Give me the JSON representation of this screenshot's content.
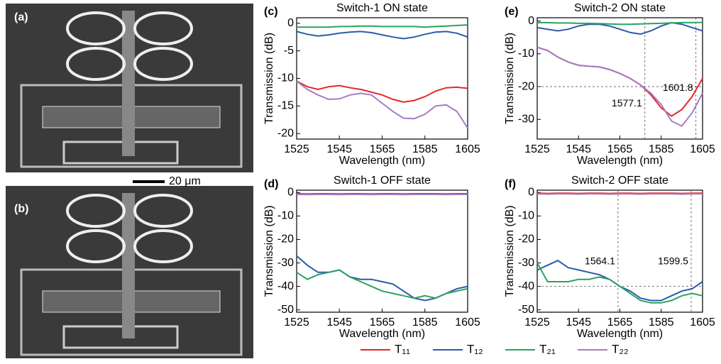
{
  "figure": {
    "panel_labels": [
      "(a)",
      "(b)"
    ],
    "scale_bar": "20 μm"
  },
  "chart_data": [
    {
      "type": "line",
      "panel_label": "(c)",
      "title": "Switch-1 ON state",
      "x_label": "Wavelength (nm)",
      "y_label": "Transmission (dB)",
      "x": [
        1525,
        1530,
        1535,
        1540,
        1545,
        1550,
        1555,
        1560,
        1565,
        1570,
        1575,
        1580,
        1585,
        1590,
        1595,
        1600,
        1605
      ],
      "xlim": [
        1525,
        1605
      ],
      "xticks": [
        1525,
        1545,
        1565,
        1585,
        1605
      ],
      "ylim": [
        -21,
        1
      ],
      "yticks": [
        0,
        -5,
        -10,
        -15,
        -20
      ],
      "series": [
        {
          "name": "T₁₁",
          "color": "#e8262a",
          "values": [
            -10.5,
            -11.5,
            -12,
            -11.5,
            -11.3,
            -11.7,
            -12,
            -12.5,
            -13,
            -13.8,
            -14.3,
            -14,
            -13.3,
            -12.3,
            -11.7,
            -11.6,
            -11.8
          ]
        },
        {
          "name": "T₁₂",
          "color": "#2a5caa",
          "values": [
            -1.5,
            -2,
            -2.3,
            -2.1,
            -1.8,
            -1.6,
            -1.5,
            -1.7,
            -2.1,
            -2.5,
            -2.8,
            -2.5,
            -2,
            -1.6,
            -1.5,
            -1.8,
            -2.5
          ]
        },
        {
          "name": "T₂₁",
          "color": "#2ca25f",
          "values": [
            -0.7,
            -0.7,
            -0.7,
            -0.7,
            -0.6,
            -0.6,
            -0.5,
            -0.5,
            -0.6,
            -0.6,
            -0.6,
            -0.6,
            -0.7,
            -0.6,
            -0.5,
            -0.4,
            -0.3
          ]
        },
        {
          "name": "T₂₂",
          "color": "#a57dc3",
          "values": [
            -10.5,
            -12,
            -13,
            -13.8,
            -13.7,
            -13,
            -12.7,
            -13,
            -14.5,
            -16,
            -17.2,
            -17.3,
            -16.5,
            -15,
            -14.8,
            -16,
            -19
          ]
        }
      ]
    },
    {
      "type": "line",
      "panel_label": "(d)",
      "title": "Switch-1 OFF state",
      "x_label": "Wavelength (nm)",
      "y_label": "Transmission (dB)",
      "x": [
        1525,
        1530,
        1535,
        1540,
        1545,
        1550,
        1555,
        1560,
        1565,
        1570,
        1575,
        1580,
        1585,
        1590,
        1595,
        1600,
        1605
      ],
      "xlim": [
        1525,
        1605
      ],
      "xticks": [
        1525,
        1545,
        1565,
        1585,
        1605
      ],
      "ylim": [
        -51,
        1
      ],
      "yticks": [
        0,
        -10,
        -20,
        -30,
        -40,
        -50
      ],
      "series": [
        {
          "name": "T₁₁",
          "color": "#e8262a",
          "values": [
            -0.5,
            -0.6,
            -0.5,
            -0.5,
            -0.6,
            -0.5,
            -0.5,
            -0.6,
            -0.5,
            -0.5,
            -0.6,
            -0.5,
            -0.5,
            -0.5,
            -0.6,
            -0.5,
            -0.5
          ]
        },
        {
          "name": "T₁₂",
          "color": "#2a5caa",
          "values": [
            -27,
            -31,
            -34,
            -34,
            -33,
            -36,
            -37,
            -37,
            -38,
            -39,
            -42,
            -45,
            -46,
            -45,
            -43,
            -41,
            -40
          ]
        },
        {
          "name": "T₂₁",
          "color": "#2ca25f",
          "values": [
            -34,
            -37,
            -35,
            -34,
            -33,
            -36,
            -38,
            -40,
            -42,
            -43,
            -44,
            -45,
            -44,
            -45,
            -43,
            -42,
            -41
          ]
        },
        {
          "name": "T₂₂",
          "color": "#a57dc3",
          "values": [
            -0.8,
            -0.9,
            -0.8,
            -0.8,
            -0.9,
            -0.8,
            -0.8,
            -0.9,
            -0.8,
            -0.8,
            -0.9,
            -0.8,
            -0.8,
            -0.8,
            -0.9,
            -0.8,
            -0.8
          ]
        }
      ]
    },
    {
      "type": "line",
      "panel_label": "(e)",
      "title": "Switch-2 ON state",
      "x_label": "Wavelength (nm)",
      "y_label": "Transmission (dB)",
      "x": [
        1525,
        1530,
        1535,
        1540,
        1545,
        1550,
        1555,
        1560,
        1565,
        1570,
        1575,
        1580,
        1585,
        1590,
        1595,
        1600,
        1605
      ],
      "xlim": [
        1525,
        1605
      ],
      "xticks": [
        1525,
        1545,
        1565,
        1585,
        1605
      ],
      "ylim": [
        -36,
        1
      ],
      "yticks": [
        0,
        -10,
        -20,
        -30
      ],
      "ref_x": [
        1577.1,
        1601.8
      ],
      "ref_y": -20,
      "series": [
        {
          "name": "T₁₁",
          "color": "#e8262a",
          "values": [
            -8,
            -9,
            -11,
            -12.5,
            -13.5,
            -13.8,
            -14,
            -14.8,
            -16,
            -17.5,
            -19.5,
            -22.5,
            -26.5,
            -29,
            -27,
            -23,
            -17.5
          ]
        },
        {
          "name": "T₁₂",
          "color": "#2a5caa",
          "values": [
            -2,
            -2.5,
            -3,
            -2.5,
            -1.5,
            -1,
            -1,
            -1.5,
            -2.5,
            -3.5,
            -4,
            -3,
            -1.5,
            -0.5,
            -1,
            -2,
            -3
          ]
        },
        {
          "name": "T₂₁",
          "color": "#2ca25f",
          "values": [
            -0.5,
            -0.5,
            -0.6,
            -0.6,
            -0.7,
            -0.7,
            -0.8,
            -0.9,
            -1,
            -1,
            -0.9,
            -0.8,
            -0.7,
            -0.6,
            -0.5,
            -0.5,
            -0.4
          ]
        },
        {
          "name": "T₂₂",
          "color": "#a57dc3",
          "values": [
            -8,
            -9,
            -11,
            -12.5,
            -13.5,
            -13.8,
            -14,
            -14.8,
            -16,
            -17.5,
            -19.5,
            -22,
            -25.5,
            -30.5,
            -32,
            -28,
            -22
          ]
        }
      ]
    },
    {
      "type": "line",
      "panel_label": "(f)",
      "title": "Switch-2 OFF state",
      "x_label": "Wavelength (nm)",
      "y_label": "Transmission (dB)",
      "x": [
        1525,
        1530,
        1535,
        1540,
        1545,
        1550,
        1555,
        1560,
        1565,
        1570,
        1575,
        1580,
        1585,
        1590,
        1595,
        1600,
        1605
      ],
      "xlim": [
        1525,
        1605
      ],
      "xticks": [
        1525,
        1545,
        1565,
        1585,
        1605
      ],
      "ylim": [
        -51,
        1
      ],
      "yticks": [
        0,
        -10,
        -20,
        -30,
        -40,
        -50
      ],
      "ref_x": [
        1564.1,
        1599.5
      ],
      "ref_y": -40,
      "series": [
        {
          "name": "T₁₁",
          "color": "#e8262a",
          "values": [
            -0.3,
            -0.4,
            -0.3,
            -0.3,
            -0.4,
            -0.3,
            -0.3,
            -0.4,
            -0.3,
            -0.3,
            -0.4,
            -0.3,
            -0.3,
            -0.3,
            -0.4,
            -0.3,
            -0.3
          ]
        },
        {
          "name": "T₁₂",
          "color": "#2a5caa",
          "values": [
            -33,
            -31,
            -29,
            -32,
            -33,
            -34,
            -35,
            -37,
            -40,
            -42,
            -45,
            -46,
            -46,
            -44,
            -42,
            -41,
            -38
          ]
        },
        {
          "name": "T₂₁",
          "color": "#2ca25f",
          "values": [
            -30,
            -38,
            -38,
            -38,
            -37,
            -37,
            -36,
            -37,
            -40,
            -43,
            -46,
            -47,
            -47,
            -46,
            -44,
            -43,
            -44
          ]
        },
        {
          "name": "T₂₂",
          "color": "#a57dc3",
          "values": [
            -0.6,
            -0.7,
            -0.6,
            -0.6,
            -0.7,
            -0.6,
            -0.6,
            -0.7,
            -0.6,
            -0.6,
            -0.7,
            -0.6,
            -0.6,
            -0.6,
            -0.7,
            -0.6,
            -0.6
          ]
        }
      ]
    }
  ]
}
